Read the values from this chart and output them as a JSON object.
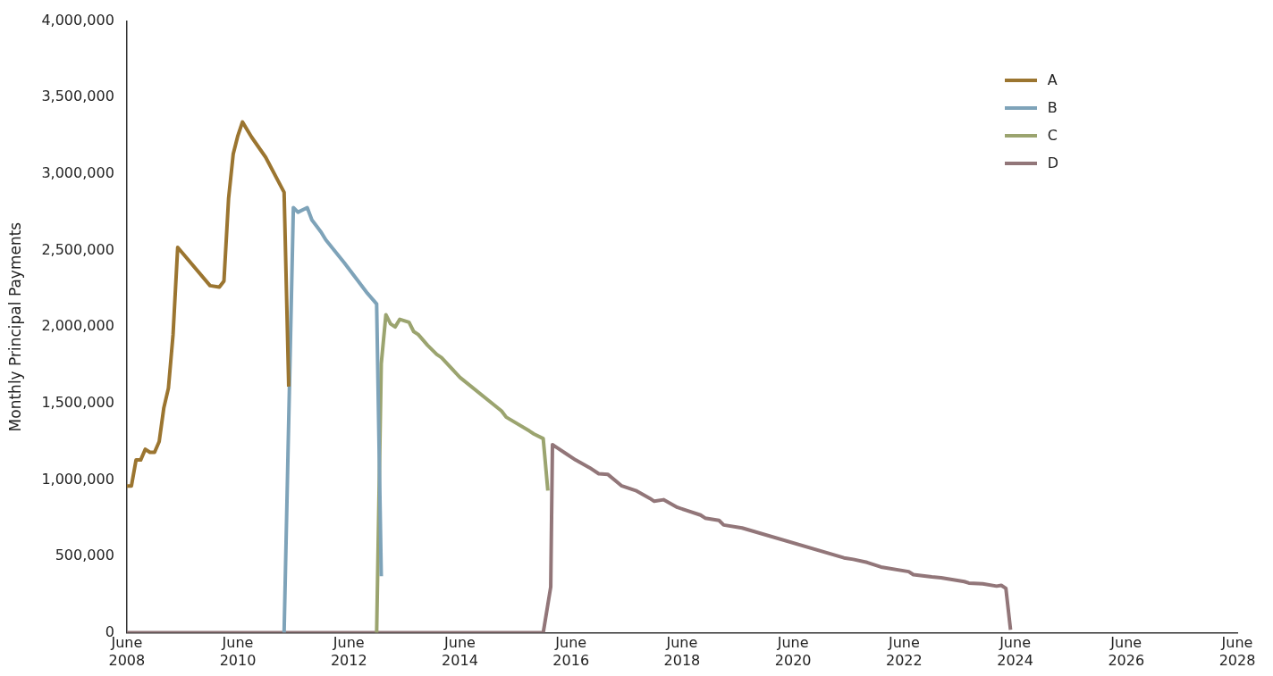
{
  "chart_data": {
    "type": "line",
    "ylabel": "Monthly Principal Payments",
    "legend": "top right",
    "grid": false,
    "marker": "none",
    "line_style": "solid",
    "xlim": [
      "2008-06",
      "2028-06"
    ],
    "xticks": [
      {
        "value": "2008-06",
        "label": "June 2008"
      },
      {
        "value": "2010-06",
        "label": "June 2010"
      },
      {
        "value": "2012-06",
        "label": "June 2012"
      },
      {
        "value": "2014-06",
        "label": "June 2014"
      },
      {
        "value": "2016-06",
        "label": "June 2016"
      },
      {
        "value": "2018-06",
        "label": "June 2018"
      },
      {
        "value": "2020-06",
        "label": "June 2020"
      },
      {
        "value": "2022-06",
        "label": "June 2022"
      },
      {
        "value": "2024-06",
        "label": "June 2024"
      },
      {
        "value": "2026-06",
        "label": "June 2026"
      },
      {
        "value": "2028-06",
        "label": "June 2028"
      }
    ],
    "ylim": [
      0,
      4000000
    ],
    "yticks": [
      0,
      {
        "value": 500000,
        "label": "500,000"
      },
      {
        "value": 1000000,
        "label": "1,000,000"
      },
      {
        "value": 1500000,
        "label": "1,500,000"
      },
      {
        "value": 2000000,
        "label": "2,000,000"
      },
      {
        "value": 2500000,
        "label": "2,500,000"
      },
      {
        "value": 3000000,
        "label": "3,000,000"
      },
      {
        "value": 3500000,
        "label": "3,500,000"
      },
      {
        "value": 4000000,
        "label": "4,000,000"
      }
    ],
    "series": [
      {
        "name": "A",
        "color": "#9b7530",
        "x": [
          "2008-06",
          "2008-07",
          "2008-08",
          "2008-09",
          "2008-10",
          "2008-11",
          "2008-12",
          "2009-01",
          "2009-02",
          "2009-03",
          "2009-04",
          "2009-05",
          "2009-12",
          "2010-02",
          "2010-03",
          "2010-04",
          "2010-05",
          "2010-06",
          "2010-07",
          "2010-09",
          "2010-12",
          "2011-04",
          "2011-05"
        ],
        "values": [
          960000,
          960000,
          1130000,
          1130000,
          1200000,
          1180000,
          1180000,
          1250000,
          1470000,
          1600000,
          1950000,
          2520000,
          2270000,
          2260000,
          2300000,
          2840000,
          3130000,
          3250000,
          3340000,
          3240000,
          3110000,
          2880000,
          1610000
        ]
      },
      {
        "name": "B",
        "color": "#7ea3b9",
        "x": [
          "2011-04",
          "2011-06",
          "2011-07",
          "2011-09",
          "2011-10",
          "2011-12",
          "2012-01",
          "2012-05",
          "2012-08",
          "2012-10",
          "2012-12",
          "2013-01"
        ],
        "values": [
          0,
          2780000,
          2750000,
          2780000,
          2700000,
          2620000,
          2570000,
          2420000,
          2300000,
          2220000,
          2150000,
          370000
        ]
      },
      {
        "name": "C",
        "color": "#9ba46f",
        "x": [
          "2012-12",
          "2013-01",
          "2013-02",
          "2013-03",
          "2013-04",
          "2013-05",
          "2013-07",
          "2013-08",
          "2013-09",
          "2013-11",
          "2014-01",
          "2014-02",
          "2014-06",
          "2015-03",
          "2015-04",
          "2015-09",
          "2015-10",
          "2015-12",
          "2016-01"
        ],
        "values": [
          0,
          1760000,
          2080000,
          2020000,
          2000000,
          2050000,
          2030000,
          1970000,
          1950000,
          1880000,
          1820000,
          1800000,
          1670000,
          1450000,
          1410000,
          1320000,
          1300000,
          1270000,
          930000
        ]
      },
      {
        "name": "D",
        "color": "#927679",
        "x": [
          "2008-06",
          "2015-12",
          "2016-01-20",
          "2016-02",
          "2016-03",
          "2016-05",
          "2016-07",
          "2016-10",
          "2016-12",
          "2017-02",
          "2017-05",
          "2017-06",
          "2017-08",
          "2017-11",
          "2017-12",
          "2018-02",
          "2018-05",
          "2018-07",
          "2018-10",
          "2018-11",
          "2019-02",
          "2019-03",
          "2019-07",
          "2021-05",
          "2021-07",
          "2021-10",
          "2022-01",
          "2022-07",
          "2022-08",
          "2022-12",
          "2023-02",
          "2023-07",
          "2023-08",
          "2023-11",
          "2024-02",
          "2024-03",
          "2024-04",
          "2024-05"
        ],
        "values": [
          0,
          0,
          300000,
          1230000,
          1210000,
          1170000,
          1130000,
          1080000,
          1040000,
          1035000,
          960000,
          950000,
          930000,
          880000,
          860000,
          870000,
          820000,
          800000,
          770000,
          750000,
          735000,
          705000,
          685000,
          490000,
          480000,
          460000,
          430000,
          400000,
          380000,
          365000,
          360000,
          335000,
          325000,
          320000,
          305000,
          310000,
          290000,
          20000
        ]
      }
    ]
  }
}
